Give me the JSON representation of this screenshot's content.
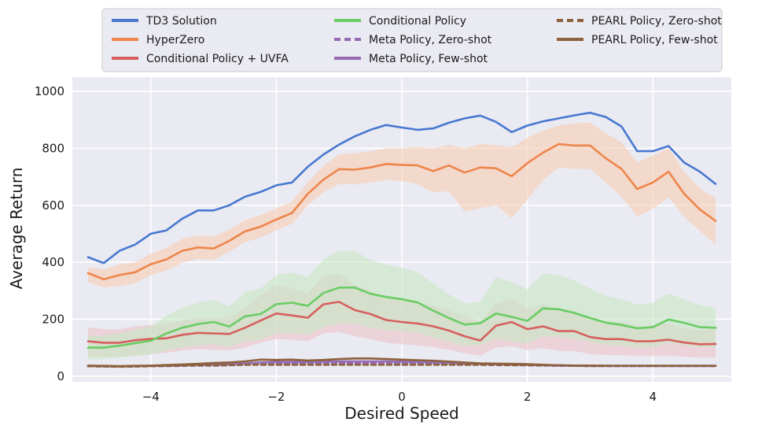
{
  "chart_data": {
    "type": "line",
    "title": "",
    "xlabel": "Desired Speed",
    "ylabel": "Average Return",
    "xlim": [
      -5.25,
      5.25
    ],
    "ylim": [
      -20,
      1050
    ],
    "xticks": [
      -4,
      -2,
      0,
      2,
      4
    ],
    "xtick_labels": [
      "−4",
      "−2",
      "0",
      "2",
      "4"
    ],
    "yticks": [
      0,
      200,
      400,
      600,
      800,
      1000
    ],
    "ytick_labels": [
      "0",
      "200",
      "400",
      "600",
      "800",
      "1000"
    ],
    "grid": true,
    "legend_position": "top",
    "x": [
      -5.0,
      -4.75,
      -4.5,
      -4.25,
      -4.0,
      -3.75,
      -3.5,
      -3.25,
      -3.0,
      -2.75,
      -2.5,
      -2.25,
      -2.0,
      -1.75,
      -1.5,
      -1.25,
      -1.0,
      -0.75,
      -0.5,
      -0.25,
      0.0,
      0.25,
      0.5,
      0.75,
      1.0,
      1.25,
      1.5,
      1.75,
      2.0,
      2.25,
      2.5,
      2.75,
      3.0,
      3.25,
      3.5,
      3.75,
      4.0,
      4.25,
      4.5,
      4.75,
      5.0
    ],
    "series": [
      {
        "name": "TD3 Solution",
        "color": "#4878d0",
        "style": "solid",
        "values": [
          418,
          397,
          440,
          462,
          500,
          512,
          553,
          582,
          582,
          600,
          630,
          647,
          670,
          680,
          735,
          778,
          813,
          842,
          865,
          882,
          873,
          865,
          870,
          890,
          905,
          915,
          893,
          857,
          880,
          895,
          905,
          916,
          925,
          910,
          877,
          790,
          790,
          808,
          750,
          718,
          675
        ]
      },
      {
        "name": "HyperZero",
        "color": "#ee854a",
        "style": "solid",
        "band_color": "#f7cdb2",
        "values": [
          362,
          340,
          355,
          365,
          393,
          410,
          440,
          452,
          448,
          475,
          508,
          525,
          550,
          573,
          640,
          690,
          727,
          725,
          733,
          745,
          742,
          740,
          720,
          740,
          715,
          733,
          730,
          702,
          748,
          785,
          815,
          810,
          810,
          765,
          728,
          657,
          680,
          718,
          640,
          585,
          545
        ],
        "band_low": [
          330,
          312,
          316,
          327,
          354,
          370,
          398,
          412,
          408,
          437,
          470,
          487,
          512,
          535,
          600,
          645,
          675,
          673,
          680,
          690,
          685,
          675,
          645,
          650,
          578,
          590,
          600,
          555,
          620,
          688,
          733,
          728,
          728,
          680,
          630,
          560,
          588,
          628,
          560,
          510,
          462
        ],
        "band_high": [
          382,
          375,
          392,
          400,
          430,
          450,
          482,
          494,
          490,
          515,
          548,
          565,
          590,
          613,
          680,
          738,
          780,
          782,
          790,
          800,
          800,
          805,
          800,
          812,
          800,
          815,
          812,
          803,
          838,
          862,
          880,
          888,
          890,
          852,
          822,
          752,
          775,
          800,
          717,
          660,
          625
        ]
      },
      {
        "name": "Conditional Policy + UVFA",
        "color": "#d65f5f",
        "style": "solid",
        "band_color": "#ecc3c8",
        "values": [
          122,
          117,
          117,
          126,
          131,
          133,
          145,
          152,
          150,
          148,
          170,
          195,
          220,
          213,
          205,
          252,
          261,
          232,
          218,
          197,
          190,
          185,
          175,
          160,
          140,
          125,
          177,
          190,
          165,
          175,
          158,
          158,
          137,
          130,
          130,
          122,
          123,
          128,
          118,
          112,
          113
        ],
        "band_low": [
          70,
          68,
          68,
          72,
          78,
          82,
          90,
          95,
          92,
          90,
          100,
          118,
          130,
          128,
          122,
          150,
          155,
          140,
          130,
          118,
          112,
          108,
          102,
          92,
          80,
          72,
          100,
          105,
          92,
          98,
          88,
          88,
          78,
          74,
          74,
          70,
          70,
          72,
          68,
          65,
          65
        ],
        "band_high": [
          172,
          165,
          165,
          175,
          180,
          185,
          195,
          205,
          205,
          205,
          240,
          285,
          320,
          308,
          290,
          350,
          360,
          320,
          300,
          275,
          265,
          258,
          248,
          232,
          210,
          192,
          255,
          272,
          238,
          252,
          228,
          228,
          198,
          188,
          188,
          176,
          178,
          185,
          170,
          162,
          163
        ]
      },
      {
        "name": "Conditional Policy",
        "color": "#6acc64",
        "style": "solid",
        "band_color": "#c6e7c3",
        "values": [
          100,
          100,
          107,
          116,
          124,
          150,
          170,
          183,
          190,
          174,
          210,
          218,
          253,
          258,
          247,
          292,
          311,
          311,
          289,
          278,
          270,
          259,
          230,
          204,
          181,
          186,
          220,
          208,
          194,
          238,
          235,
          222,
          204,
          188,
          180,
          168,
          172,
          199,
          187,
          172,
          170
        ],
        "band_low": [
          60,
          60,
          65,
          70,
          75,
          90,
          100,
          108,
          112,
          102,
          122,
          128,
          150,
          152,
          145,
          172,
          185,
          185,
          170,
          162,
          158,
          152,
          135,
          120,
          106,
          110,
          130,
          122,
          114,
          140,
          138,
          130,
          120,
          110,
          106,
          99,
          101,
          117,
          110,
          101,
          100
        ],
        "band_high": [
          140,
          142,
          150,
          163,
          175,
          212,
          240,
          258,
          268,
          245,
          295,
          308,
          355,
          364,
          348,
          410,
          440,
          440,
          408,
          392,
          380,
          365,
          325,
          288,
          255,
          262,
          348,
          330,
          305,
          360,
          355,
          335,
          308,
          282,
          270,
          252,
          258,
          290,
          270,
          250,
          240
        ]
      },
      {
        "name": "Meta Policy, Zero-shot",
        "color": "#956cb4",
        "style": "dashed",
        "values": [
          35,
          34,
          33,
          34,
          35,
          35,
          36,
          37,
          37,
          38,
          40,
          42,
          44,
          44,
          43,
          45,
          46,
          46,
          46,
          46,
          45,
          44,
          43,
          42,
          40,
          40,
          39,
          38,
          38,
          37,
          36,
          36,
          35,
          35,
          35,
          35,
          35,
          35,
          35,
          35,
          35
        ]
      },
      {
        "name": "Meta Policy, Few-shot",
        "color": "#956cb4",
        "style": "solid",
        "values": [
          36,
          35,
          34,
          35,
          36,
          37,
          38,
          40,
          41,
          42,
          45,
          48,
          50,
          50,
          49,
          51,
          52,
          52,
          52,
          52,
          51,
          50,
          48,
          46,
          44,
          43,
          42,
          41,
          40,
          39,
          38,
          37,
          36,
          36,
          36,
          36,
          36,
          36,
          36,
          36,
          36
        ]
      },
      {
        "name": "PEARL Policy, Zero-shot",
        "color": "#8c613c",
        "style": "dashed",
        "values": [
          35,
          34,
          33,
          34,
          35,
          36,
          37,
          38,
          38,
          39,
          40,
          40,
          40,
          40,
          40,
          40,
          40,
          40,
          40,
          40,
          40,
          40,
          40,
          40,
          40,
          40,
          40,
          39,
          39,
          38,
          38,
          37,
          37,
          36,
          36,
          36,
          36,
          36,
          36,
          36,
          36
        ]
      },
      {
        "name": "PEARL Policy, Few-shot",
        "color": "#8c613c",
        "style": "solid",
        "values": [
          37,
          36,
          35,
          36,
          37,
          39,
          41,
          43,
          46,
          48,
          52,
          58,
          57,
          58,
          55,
          57,
          60,
          62,
          62,
          60,
          58,
          56,
          54,
          51,
          48,
          45,
          44,
          43,
          42,
          40,
          38,
          37,
          37,
          36,
          36,
          36,
          36,
          36,
          36,
          36,
          36
        ]
      }
    ]
  }
}
